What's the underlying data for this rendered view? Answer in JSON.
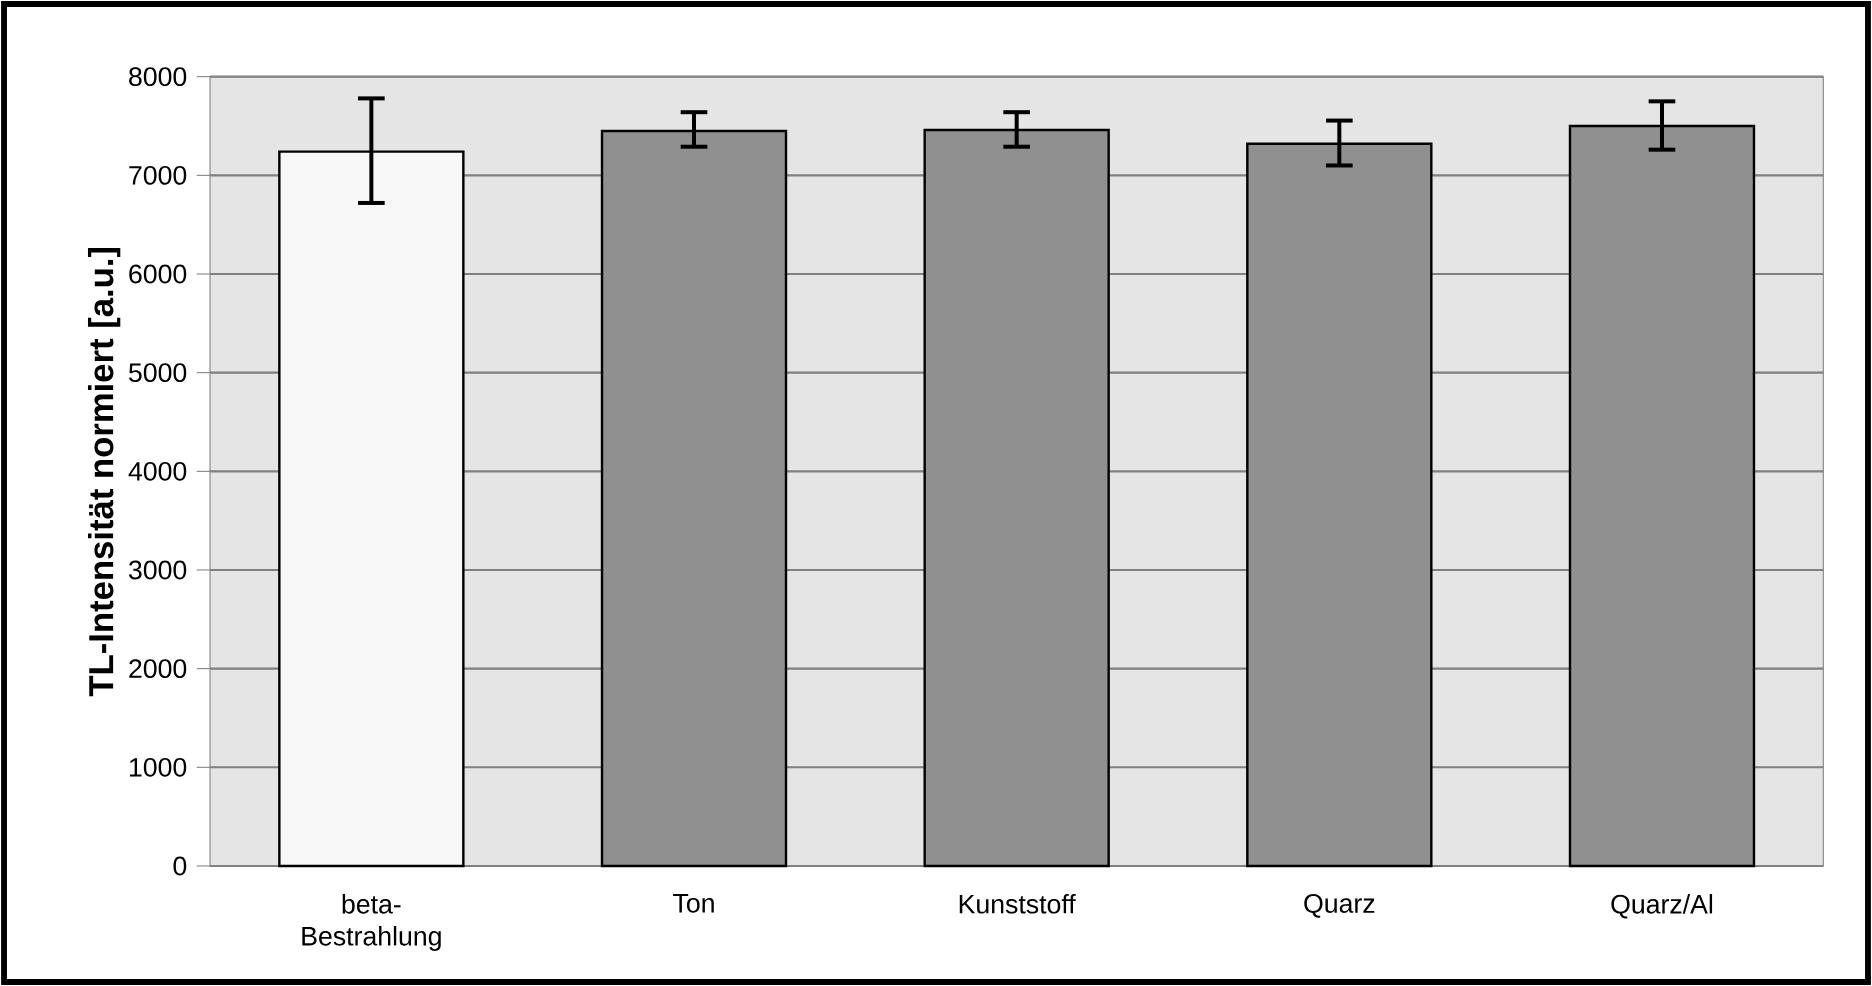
{
  "chart_data": {
    "type": "bar",
    "ylabel": "TL-Intensität normiert [a.u.]",
    "categories": [
      "beta-Bestrahlung",
      "Ton",
      "Kunststoff",
      "Quarz",
      "Quarz/Al"
    ],
    "values": [
      7240,
      7450,
      7460,
      7320,
      7500
    ],
    "colors": [
      "#f8f8f8",
      "#909090",
      "#909090",
      "#909090",
      "#909090"
    ],
    "errors": [
      [
        6720,
        7780
      ],
      [
        7290,
        7640
      ],
      [
        7290,
        7640
      ],
      [
        7100,
        7555
      ],
      [
        7260,
        7750
      ]
    ],
    "ylim": [
      0,
      8000
    ],
    "yticks": [
      0,
      1000,
      2000,
      3000,
      4000,
      5000,
      6000,
      7000,
      8000
    ],
    "grid": "y"
  }
}
